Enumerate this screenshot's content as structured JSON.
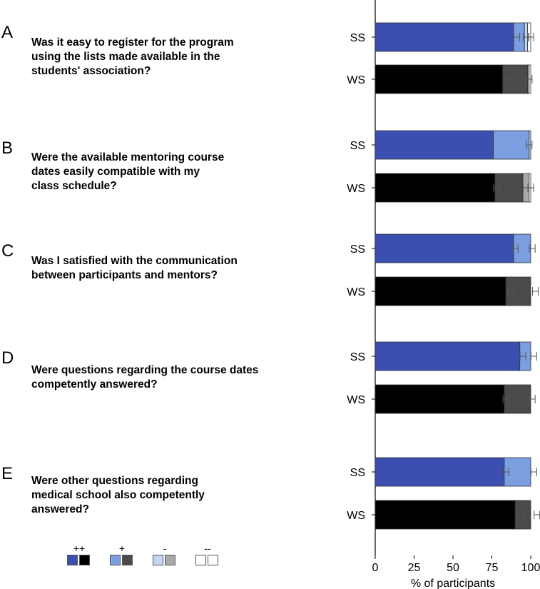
{
  "panels": [
    {
      "letter": "A",
      "question": "Was it easy to register for the program\nusing the lists made available in the\nstudents' association?"
    },
    {
      "letter": "B",
      "question": "Were the available mentoring course\ndates easily compatible with my\nclass schedule?"
    },
    {
      "letter": "C",
      "question": "Was I satisfied with the communication\nbetween participants and mentors?"
    },
    {
      "letter": "D",
      "question": "Were questions regarding the course dates\ncompetently answered?"
    },
    {
      "letter": "E",
      "question": "Were other questions regarding\nmedical school also competently\nanswered?"
    }
  ],
  "legend": [
    {
      "symbol": "++",
      "colors": [
        "#3a4fb0",
        "#000000"
      ]
    },
    {
      "symbol": "+",
      "colors": [
        "#7b9ee0",
        "#4a4a4a"
      ]
    },
    {
      "symbol": "-",
      "colors": [
        "#c3d6f2",
        "#a9a9a9"
      ]
    },
    {
      "symbol": "--",
      "colors": [
        "#ffffff",
        "#ffffff"
      ]
    }
  ],
  "chart_data": {
    "type": "bar",
    "orientation": "horizontal",
    "stacked": true,
    "xlabel": "% of participants",
    "xlim": [
      0,
      100
    ],
    "xticks": [
      0,
      25,
      50,
      75,
      100
    ],
    "group_labels": [
      "SS",
      "WS"
    ],
    "categories": [
      "++",
      "+",
      "-",
      "--"
    ],
    "colors": {
      "SS": [
        "#3a4fb0",
        "#7b9ee0",
        "#c3d6f2",
        "#ffffff"
      ],
      "WS": [
        "#000000",
        "#4a4a4a",
        "#a9a9a9",
        "#ffffff"
      ]
    },
    "bars": [
      {
        "panel": "A",
        "group": "SS",
        "values": [
          89,
          7,
          2,
          2
        ],
        "errors": [
          91,
          97,
          100
        ]
      },
      {
        "panel": "A",
        "group": "WS",
        "values": [
          82,
          16,
          1,
          1
        ],
        "errors": [
          86,
          99
        ]
      },
      {
        "panel": "B",
        "group": "SS",
        "values": [
          76,
          23,
          1,
          0
        ],
        "errors": [
          99
        ]
      },
      {
        "panel": "B",
        "group": "WS",
        "values": [
          77,
          18,
          4,
          1
        ],
        "errors": [
          78,
          97,
          100
        ]
      },
      {
        "panel": "C",
        "group": "SS",
        "values": [
          89,
          11,
          0,
          0
        ],
        "errors": [
          90,
          101
        ]
      },
      {
        "panel": "C",
        "group": "WS",
        "values": [
          84,
          16,
          0,
          0
        ],
        "errors": [
          87,
          103
        ]
      },
      {
        "panel": "D",
        "group": "SS",
        "values": [
          93,
          7,
          0,
          0
        ],
        "errors": [
          95,
          102
        ]
      },
      {
        "panel": "D",
        "group": "WS",
        "values": [
          83,
          17,
          0,
          0
        ],
        "errors": [
          84,
          101
        ]
      },
      {
        "panel": "E",
        "group": "SS",
        "values": [
          83,
          17,
          0,
          0
        ],
        "errors": [
          84,
          102
        ]
      },
      {
        "panel": "E",
        "group": "WS",
        "values": [
          90,
          10,
          0,
          0
        ],
        "errors": [
          94,
          104
        ]
      }
    ]
  }
}
